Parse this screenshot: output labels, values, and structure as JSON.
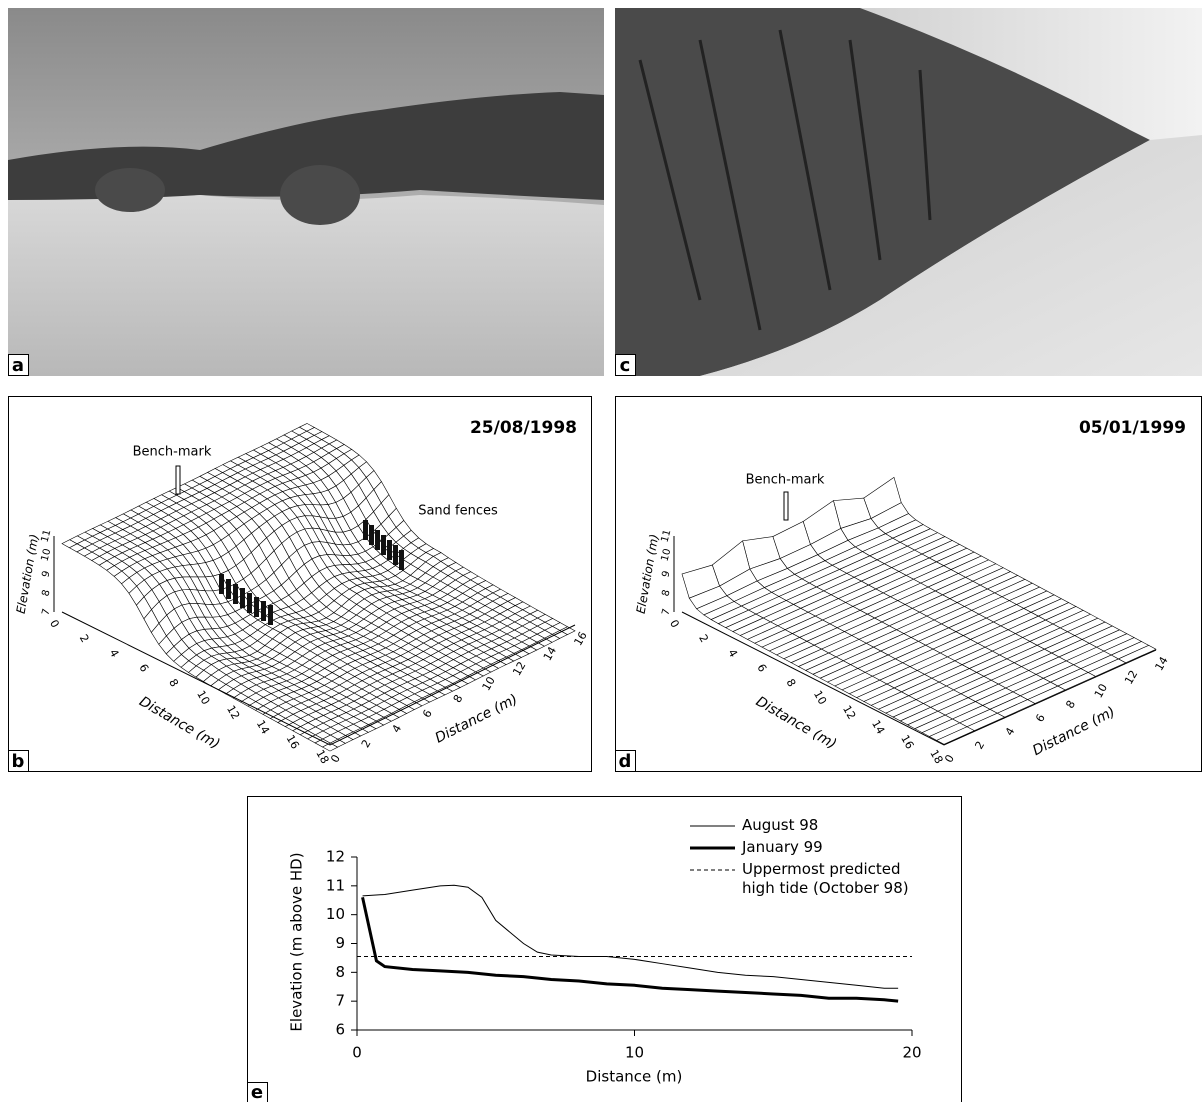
{
  "panels": {
    "a": {
      "label": "a"
    },
    "c": {
      "label": "c"
    },
    "b": {
      "label": "b",
      "date": "25/08/1998",
      "z_label": "Elevation (m)",
      "x_label": "Distance (m)",
      "y_label": "Distance (m)",
      "annotations": [
        "Bench-mark",
        "Sand fences"
      ],
      "z_ticks": [
        7,
        8,
        9,
        10,
        11
      ],
      "x_ticks": [
        0,
        2,
        4,
        6,
        8,
        10,
        12,
        14,
        16,
        18
      ],
      "y_ticks": [
        0,
        2,
        4,
        6,
        8,
        10,
        12,
        14,
        16
      ]
    },
    "d": {
      "label": "d",
      "date": "05/01/1999",
      "z_label": "Elevation (m)",
      "x_label": "Distance (m)",
      "y_label": "Distance (m)",
      "annotations": [
        "Bench-mark"
      ],
      "z_ticks": [
        7,
        8,
        9,
        10,
        11
      ],
      "x_ticks": [
        0,
        2,
        4,
        6,
        8,
        10,
        12,
        14,
        16,
        18
      ],
      "y_ticks": [
        0,
        2,
        4,
        6,
        8,
        10,
        12,
        14
      ]
    },
    "e": {
      "label": "e"
    }
  },
  "chart_data": {
    "type": "line",
    "x_label": "Distance (m)",
    "y_label": "Elevation (m above HD)",
    "xlim": [
      0,
      20
    ],
    "ylim": [
      6,
      12
    ],
    "xticks": [
      0,
      10,
      20
    ],
    "yticks": [
      6,
      7,
      8,
      9,
      10,
      11,
      12
    ],
    "series": [
      {
        "name": "August 98",
        "color": "#000000",
        "width": 1,
        "x": [
          0.2,
          1,
          2,
          3,
          3.5,
          4,
          4.5,
          5,
          6,
          6.5,
          7,
          8,
          9,
          10,
          11,
          12,
          13,
          14,
          15,
          16,
          17,
          18,
          19,
          19.5
        ],
        "values": [
          10.65,
          10.7,
          10.85,
          11.0,
          11.02,
          10.95,
          10.6,
          9.8,
          9.0,
          8.7,
          8.6,
          8.55,
          8.55,
          8.45,
          8.3,
          8.15,
          8.0,
          7.9,
          7.85,
          7.75,
          7.65,
          7.55,
          7.45,
          7.45
        ]
      },
      {
        "name": "January 99",
        "color": "#000000",
        "width": 3,
        "x": [
          0.2,
          0.7,
          1,
          2,
          3,
          4,
          5,
          6,
          7,
          8,
          9,
          10,
          11,
          12,
          13,
          14,
          15,
          16,
          17,
          18,
          19,
          19.5
        ],
        "values": [
          10.6,
          8.4,
          8.2,
          8.1,
          8.05,
          8.0,
          7.9,
          7.85,
          7.75,
          7.7,
          7.6,
          7.55,
          7.45,
          7.4,
          7.35,
          7.3,
          7.25,
          7.2,
          7.1,
          7.1,
          7.05,
          7.0
        ]
      },
      {
        "name": "Uppermost predicted high tide (October 98)",
        "color": "#000000",
        "width": 1,
        "dash": true,
        "x": [
          0,
          20
        ],
        "values": [
          8.55,
          8.55
        ]
      }
    ]
  }
}
